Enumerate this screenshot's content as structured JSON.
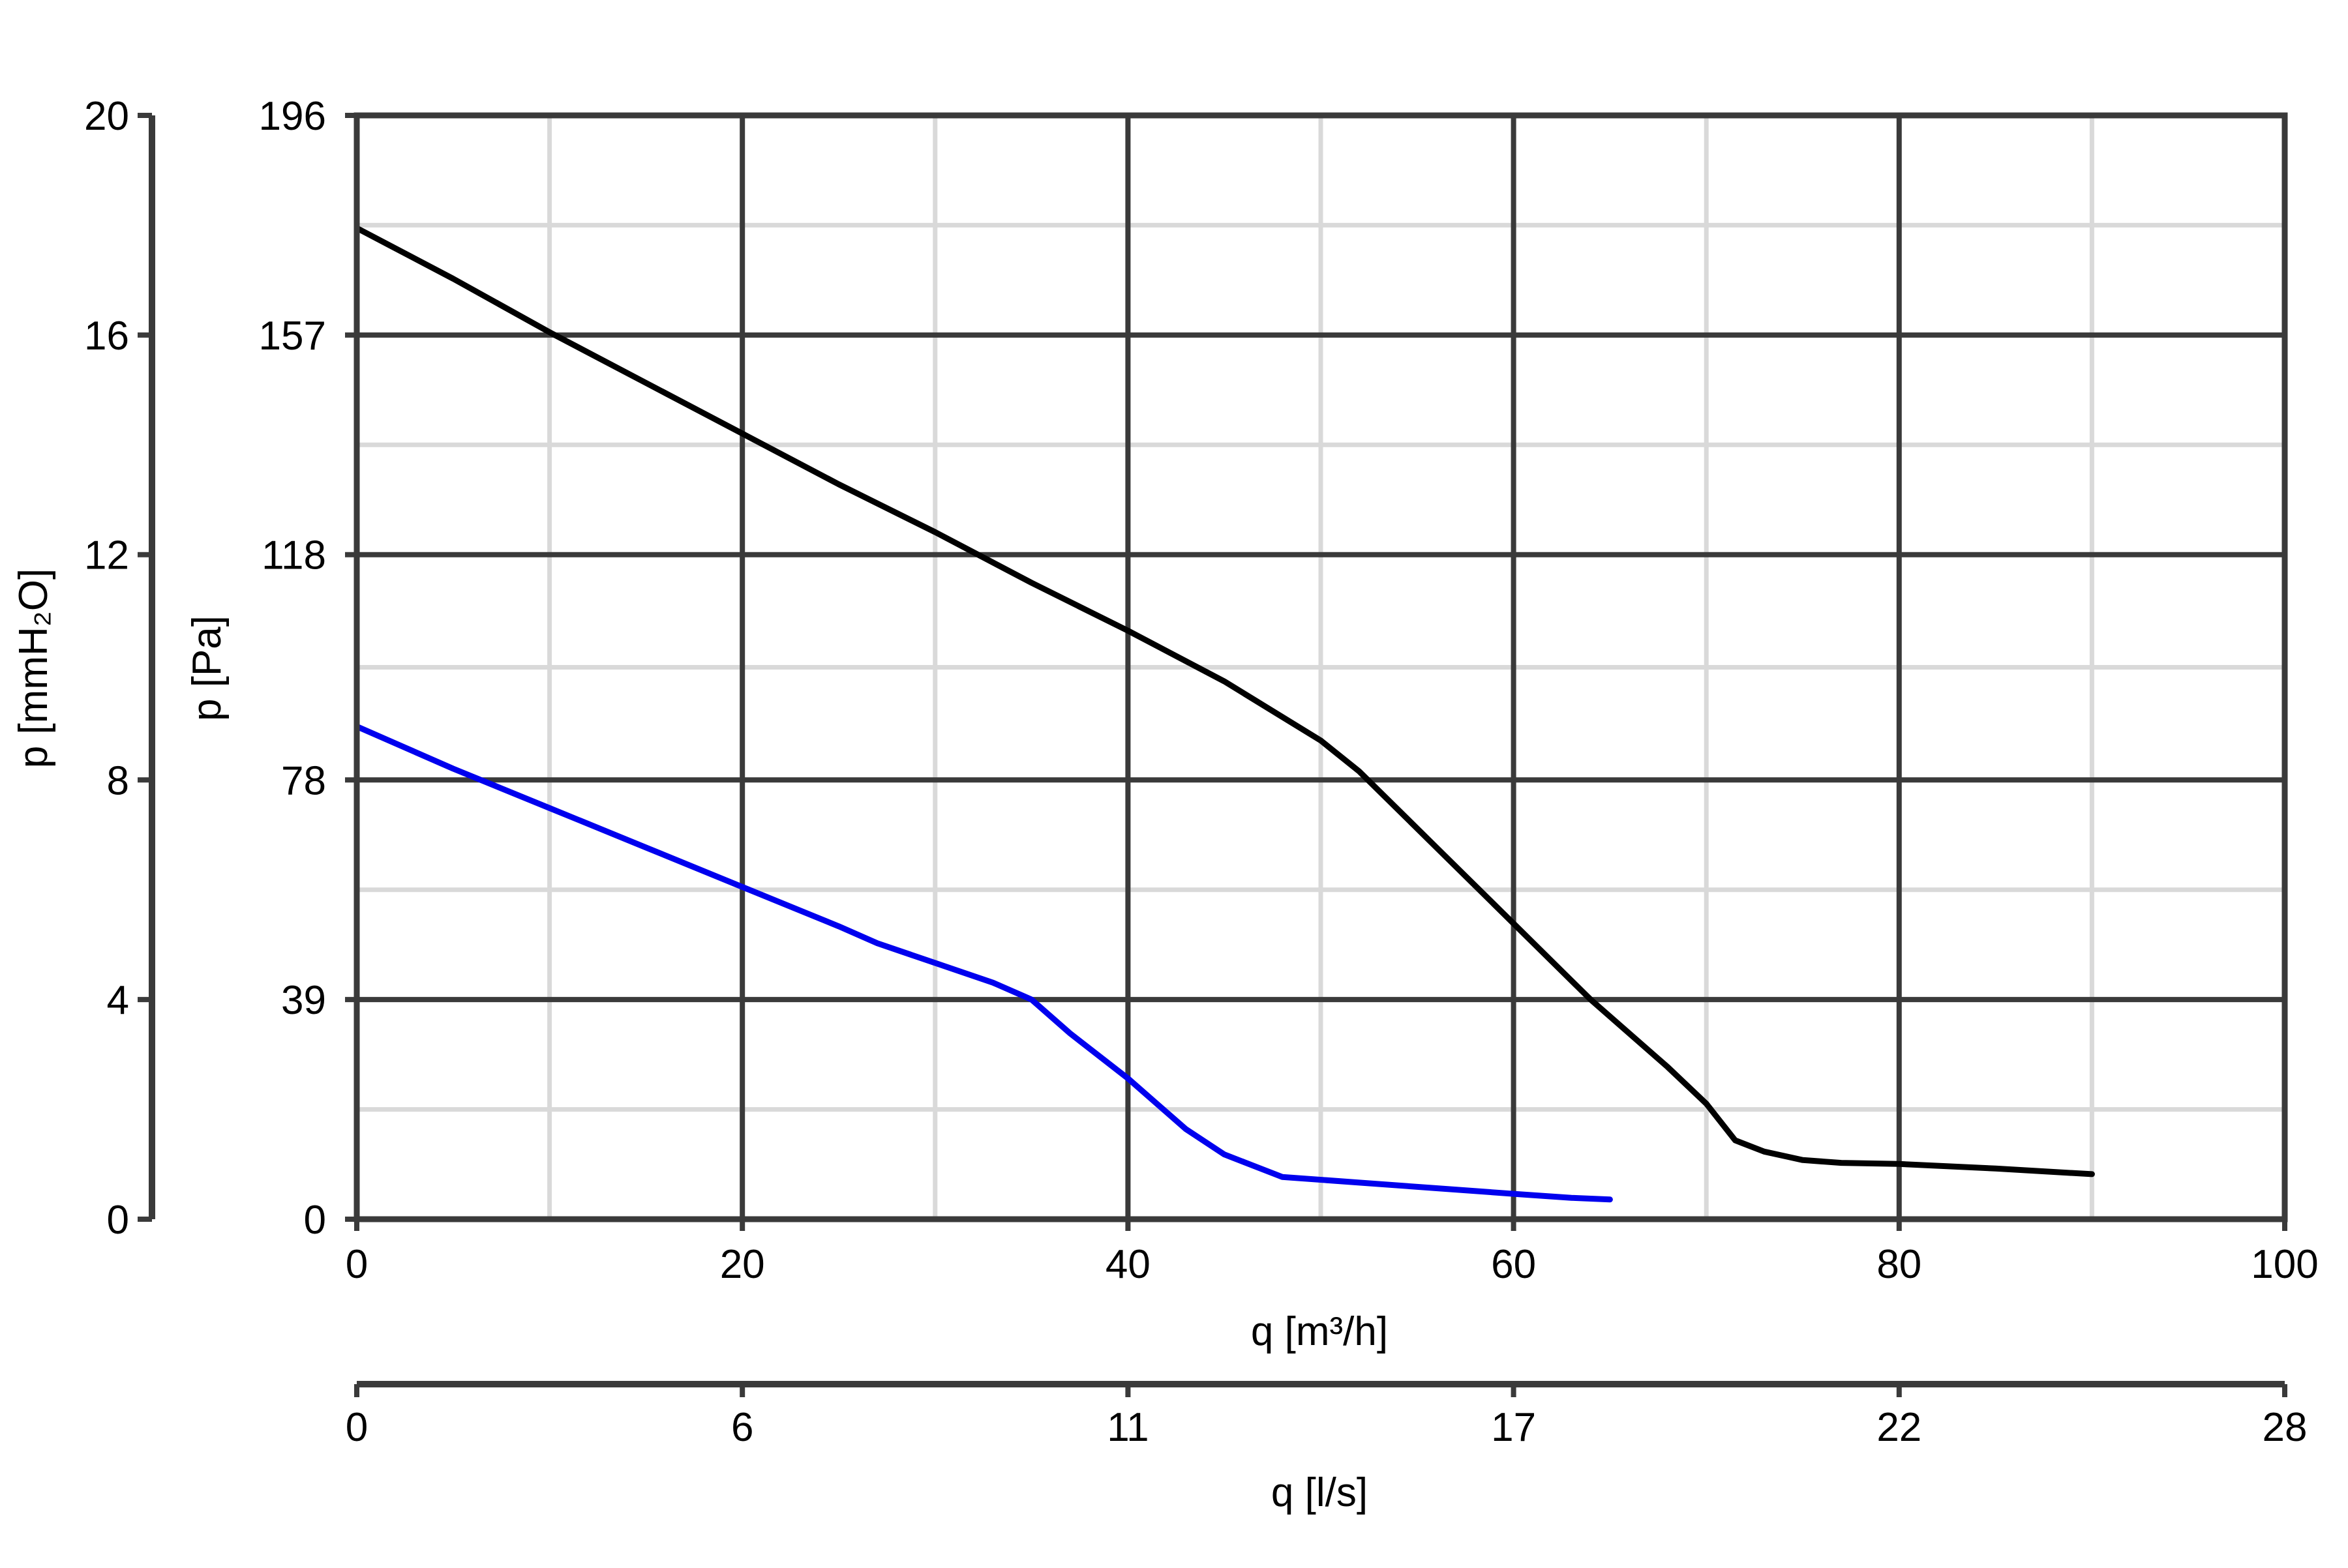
{
  "chart_data": {
    "type": "line",
    "x": {
      "label": "q [m³/h]",
      "range": [
        0,
        100
      ],
      "ticks": [
        0,
        20,
        40,
        60,
        80,
        100
      ],
      "tick_labels": [
        "0",
        "20",
        "40",
        "60",
        "80",
        "100"
      ],
      "minor_gridlines": [
        10,
        30,
        50,
        70,
        90
      ]
    },
    "x_secondary": {
      "label": "q [l/s]",
      "tick_labels": [
        "0",
        "6",
        "11",
        "17",
        "22",
        "28"
      ]
    },
    "y": {
      "label": "p [Pa]",
      "range": [
        0,
        196
      ],
      "ticks": [
        0,
        39,
        78,
        118,
        157,
        196
      ],
      "tick_labels": [
        "0",
        "39",
        "78",
        "118",
        "157",
        "196"
      ]
    },
    "y_secondary": {
      "label": "p [mmH₂O]",
      "tick_labels": [
        "0",
        "4",
        "8",
        "12",
        "16",
        "20"
      ]
    },
    "grid": true,
    "series": [
      {
        "color": "#000000",
        "points": [
          [
            0,
            176
          ],
          [
            5,
            167
          ],
          [
            10,
            157.5
          ],
          [
            15,
            148.5
          ],
          [
            20,
            139.5
          ],
          [
            25,
            130.5
          ],
          [
            30,
            122
          ],
          [
            35,
            113
          ],
          [
            40,
            104.5
          ],
          [
            45,
            95.5
          ],
          [
            50,
            85
          ],
          [
            52,
            79.5
          ],
          [
            56,
            66
          ],
          [
            60,
            52.5
          ],
          [
            64,
            39
          ],
          [
            68,
            27
          ],
          [
            70,
            20.5
          ],
          [
            71.5,
            14
          ],
          [
            73,
            12
          ],
          [
            75,
            10.5
          ],
          [
            77,
            10
          ],
          [
            80,
            9.8
          ],
          [
            85,
            9
          ],
          [
            90,
            8
          ]
        ]
      },
      {
        "color": "#0000ee",
        "points": [
          [
            0,
            87.5
          ],
          [
            5,
            80
          ],
          [
            10,
            73
          ],
          [
            15,
            66
          ],
          [
            20,
            59
          ],
          [
            25,
            52
          ],
          [
            27,
            49
          ],
          [
            30,
            45.5
          ],
          [
            33,
            42
          ],
          [
            35,
            39
          ],
          [
            37,
            33
          ],
          [
            40,
            25
          ],
          [
            43,
            16
          ],
          [
            45,
            11.5
          ],
          [
            48,
            7.5
          ],
          [
            52,
            6.5
          ],
          [
            56,
            5.5
          ],
          [
            60,
            4.5
          ],
          [
            63,
            3.8
          ],
          [
            65,
            3.5
          ]
        ]
      }
    ]
  }
}
